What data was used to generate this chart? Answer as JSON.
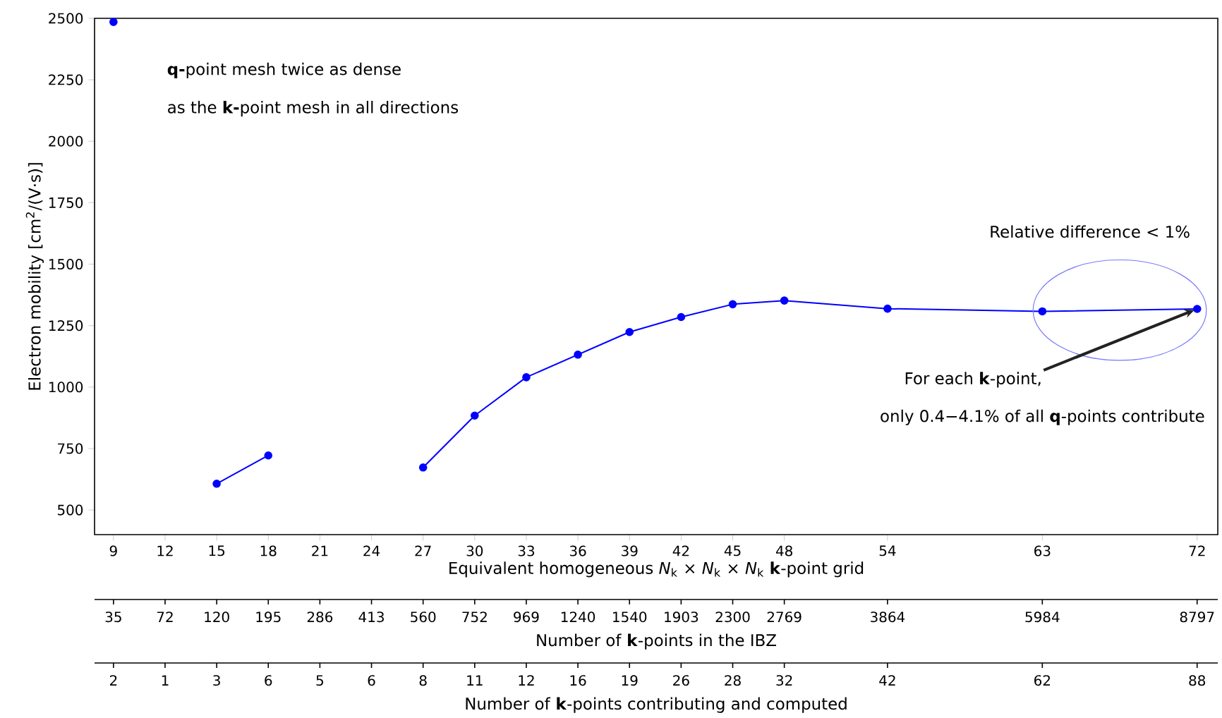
{
  "chart_data": {
    "type": "line",
    "x": [
      9,
      12,
      15,
      18,
      21,
      24,
      27,
      30,
      33,
      36,
      39,
      42,
      45,
      48,
      54,
      63,
      72
    ],
    "values": [
      2485,
      null,
      607,
      722,
      null,
      null,
      673,
      884,
      1040,
      1132,
      1224,
      1285,
      1337,
      1352,
      1319,
      1308,
      1318
    ],
    "color": "#0000ff",
    "marker": "circle",
    "xlim": [
      7.9,
      73.2
    ],
    "ylim": [
      400,
      2500
    ],
    "xticks": [
      9,
      12,
      15,
      18,
      21,
      24,
      27,
      30,
      33,
      36,
      39,
      42,
      45,
      48,
      54,
      63,
      72
    ],
    "yticks": [
      500,
      750,
      1000,
      1250,
      1500,
      1750,
      2000,
      2250,
      2500
    ],
    "xlabel": "Equivalent homogeneous *N*$_{k}$ × *N*$_{k}$ × *N*$_{k}$ **k**-point grid",
    "ylabel": "Electron mobility [cm$^{2}$/(V·s)]",
    "annotations": [
      "**q-**point mesh twice as dense",
      "as the **k-**point mesh in all directions",
      "Relative difference < 1%",
      {
        "text": "For each **k**-point,",
        "x": 72,
        "y": 1318
      },
      "only 0.4−4.1% of all **q**-points contribute",
      "35",
      "72",
      "120",
      "195",
      "286",
      "413",
      "560",
      "752",
      "969",
      "1240",
      "1540",
      "1903",
      "2300",
      "2769",
      "3864",
      "5984",
      "8797",
      "Number of **k**-points in the IBZ",
      "2",
      "1",
      "3",
      "6",
      "5",
      "6",
      "8",
      "11",
      "12",
      "16",
      "19",
      "26",
      "28",
      "32",
      "42",
      "62",
      "88",
      "Number of **k**-points contributing and computed"
    ]
  }
}
